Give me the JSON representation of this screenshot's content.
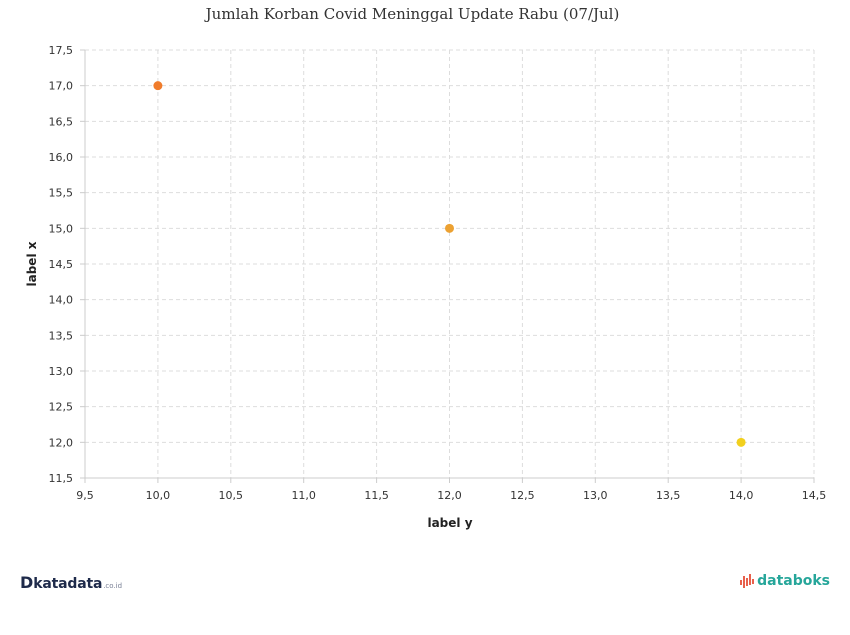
{
  "chart_data": {
    "type": "scatter",
    "title": "Jumlah Korban Covid Meninggal Update Rabu (07/Jul)",
    "xlabel": "label y",
    "ylabel": "label x",
    "xlim": [
      9.5,
      14.5
    ],
    "ylim": [
      11.5,
      17.5
    ],
    "xstep": 0.5,
    "ystep": 0.5,
    "decimal_separator": ",",
    "grid": true,
    "points": [
      {
        "x": 10,
        "y": 17,
        "color": "#f07c2b"
      },
      {
        "x": 12,
        "y": 15,
        "color": "#eca132"
      },
      {
        "x": 14,
        "y": 12,
        "color": "#f2d01e"
      }
    ]
  },
  "branding": {
    "left_mark": "D",
    "left_word": "katadata",
    "left_tld": ".co.id",
    "right_word": "databoks"
  },
  "colors": {
    "grid": "#dddddd",
    "axis": "#cccccc",
    "text": "#333333",
    "katadata": "#1e2a4a",
    "databoks": "#26a69a",
    "databoks_icon": "#e8604c"
  }
}
